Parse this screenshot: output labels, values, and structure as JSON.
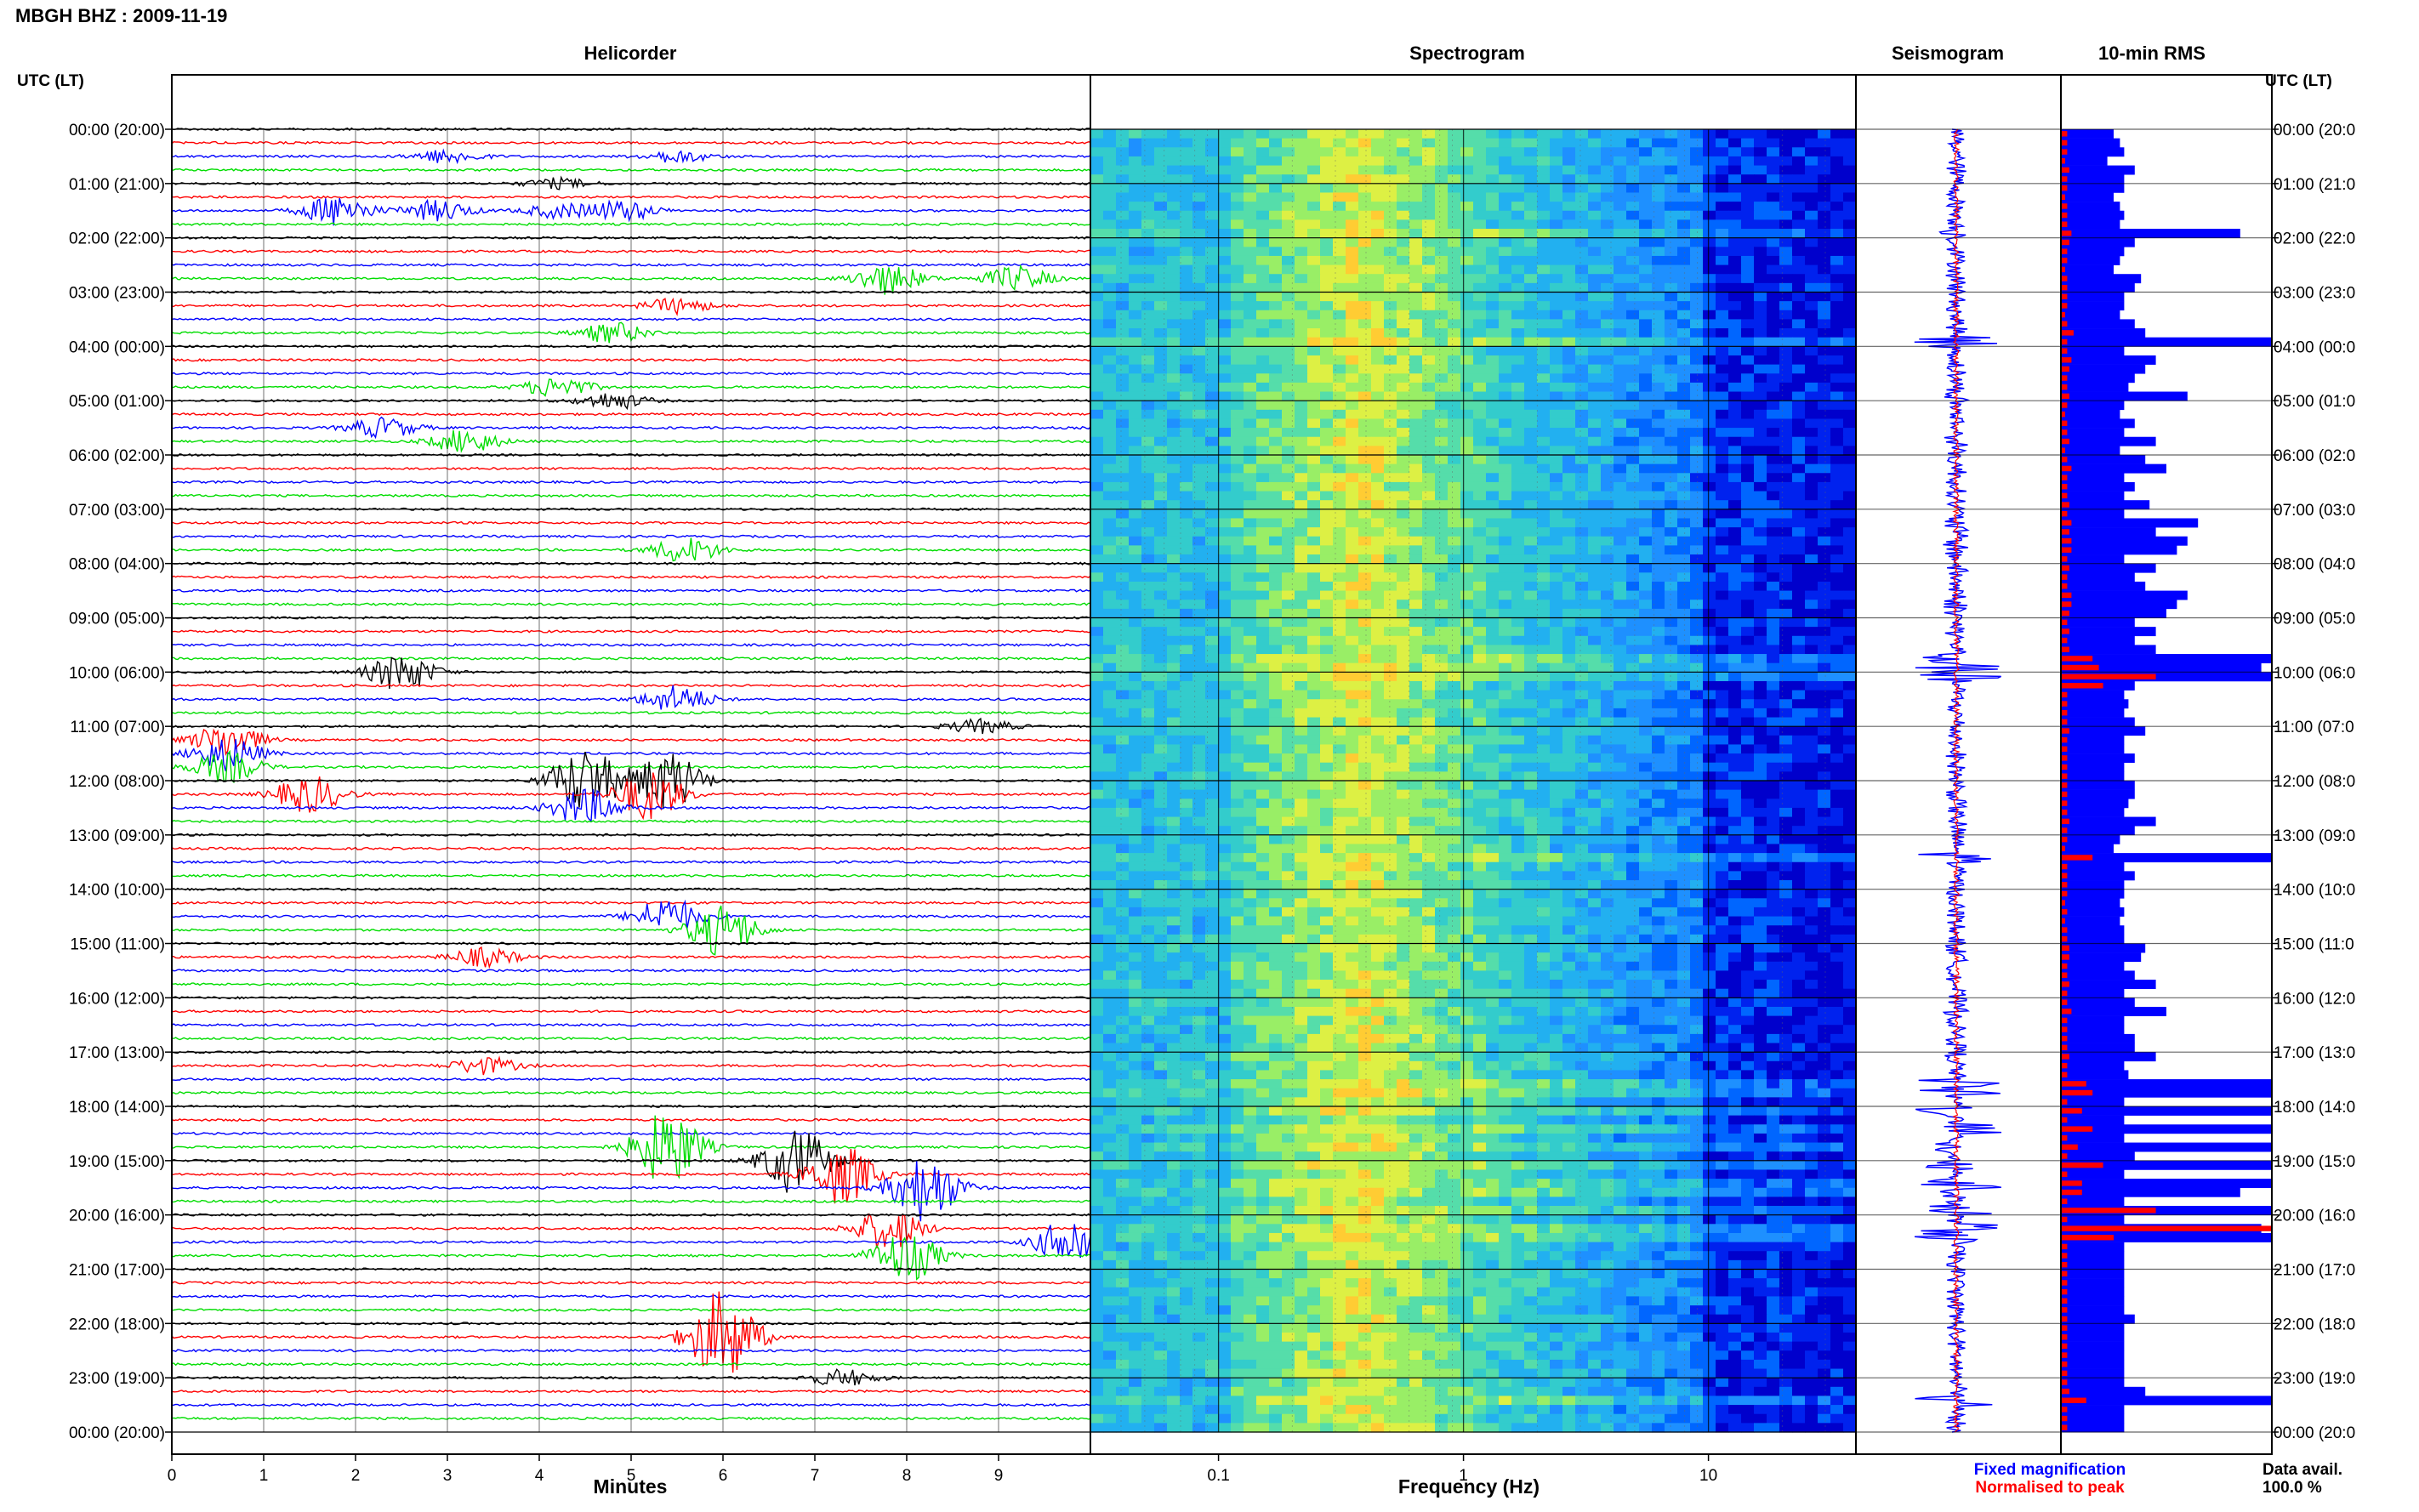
{
  "header": {
    "station_date": "MBGH BHZ : 2009-11-19"
  },
  "panels": {
    "helicorder": "Helicorder",
    "spectrogram": "Spectrogram",
    "seismogram": "Seismogram",
    "rms": "10-min RMS"
  },
  "axes": {
    "left_label": "UTC (LT)",
    "right_label": "UTC (LT)",
    "minutes_label": "Minutes",
    "frequency_label": "Frequency (Hz)"
  },
  "legend": {
    "fixed": "Fixed magnification",
    "normalised": "Normalised to peak",
    "fixed_color": "#0000ff",
    "normalised_color": "#ff0000"
  },
  "footer": {
    "availability_label": "Data avail.",
    "availability_value": "100.0 %"
  },
  "chart_data": {
    "type": "heatmap",
    "time_labels_left": [
      "00:00 (20:00)",
      "01:00 (21:00)",
      "02:00 (22:00)",
      "03:00 (23:00)",
      "04:00 (00:00)",
      "05:00 (01:00)",
      "06:00 (02:00)",
      "07:00 (03:00)",
      "08:00 (04:00)",
      "09:00 (05:00)",
      "10:00 (06:00)",
      "11:00 (07:00)",
      "12:00 (08:00)",
      "13:00 (09:00)",
      "14:00 (10:00)",
      "15:00 (11:00)",
      "16:00 (12:00)",
      "17:00 (13:00)",
      "18:00 (14:00)",
      "19:00 (15:00)",
      "20:00 (16:00)",
      "21:00 (17:00)",
      "22:00 (18:00)",
      "23:00 (19:00)",
      "00:00 (20:00)"
    ],
    "time_labels_right": [
      "00:00 (20:0",
      "01:00 (21:0",
      "02:00 (22:0",
      "03:00 (23:0",
      "04:00 (00:0",
      "05:00 (01:0",
      "06:00 (02:0",
      "07:00 (03:0",
      "08:00 (04:0",
      "09:00 (05:0",
      "10:00 (06:0",
      "11:00 (07:0",
      "12:00 (08:0",
      "13:00 (09:0",
      "14:00 (10:0",
      "15:00 (11:0",
      "16:00 (12:0",
      "17:00 (13:0",
      "18:00 (14:0",
      "19:00 (15:0",
      "20:00 (16:0",
      "21:00 (17:0",
      "22:00 (18:0",
      "23:00 (19:0",
      "00:00 (20:0"
    ],
    "minutes_ticks": [
      "0",
      "1",
      "2",
      "3",
      "4",
      "5",
      "6",
      "7",
      "8",
      "9"
    ],
    "frequency_ticks": [
      "0.1",
      "1",
      "10"
    ],
    "frequency_range_hz": [
      0.03,
      40
    ],
    "trace_colors": [
      "#000000",
      "#ff0000",
      "#0000ff",
      "#00dd00"
    ],
    "helicorder_events": [
      {
        "row": 2,
        "min": 3.0,
        "amp": 8
      },
      {
        "row": 2,
        "min": 5.5,
        "amp": 7
      },
      {
        "row": 4,
        "min": 4.2,
        "amp": 6
      },
      {
        "row": 6,
        "min": 1.8,
        "amp": 18
      },
      {
        "row": 6,
        "min": 2.9,
        "amp": 12
      },
      {
        "row": 6,
        "min": 4.2,
        "amp": 8
      },
      {
        "row": 6,
        "min": 4.9,
        "amp": 12
      },
      {
        "row": 11,
        "min": 7.8,
        "amp": 18
      },
      {
        "row": 11,
        "min": 9.2,
        "amp": 14
      },
      {
        "row": 13,
        "min": 5.5,
        "amp": 9
      },
      {
        "row": 15,
        "min": 4.8,
        "amp": 12
      },
      {
        "row": 19,
        "min": 4.2,
        "amp": 12
      },
      {
        "row": 20,
        "min": 4.8,
        "amp": 10
      },
      {
        "row": 22,
        "min": 2.3,
        "amp": 12
      },
      {
        "row": 23,
        "min": 3.2,
        "amp": 14
      },
      {
        "row": 31,
        "min": 5.6,
        "amp": 15
      },
      {
        "row": 40,
        "min": 2.5,
        "amp": 22
      },
      {
        "row": 42,
        "min": 5.5,
        "amp": 16
      },
      {
        "row": 44,
        "min": 8.8,
        "amp": 8
      },
      {
        "row": 45,
        "min": 0.6,
        "amp": 20
      },
      {
        "row": 46,
        "min": 0.6,
        "amp": 20
      },
      {
        "row": 47,
        "min": 0.6,
        "amp": 18
      },
      {
        "row": 48,
        "min": 4.5,
        "amp": 40
      },
      {
        "row": 48,
        "min": 5.4,
        "amp": 35
      },
      {
        "row": 49,
        "min": 1.5,
        "amp": 22
      },
      {
        "row": 49,
        "min": 5.2,
        "amp": 30
      },
      {
        "row": 50,
        "min": 4.5,
        "amp": 22
      },
      {
        "row": 58,
        "min": 5.4,
        "amp": 22
      },
      {
        "row": 59,
        "min": 6.0,
        "amp": 30
      },
      {
        "row": 61,
        "min": 3.4,
        "amp": 11
      },
      {
        "row": 69,
        "min": 3.4,
        "amp": 10
      },
      {
        "row": 75,
        "min": 5.4,
        "amp": 45
      },
      {
        "row": 76,
        "min": 6.8,
        "amp": 40
      },
      {
        "row": 77,
        "min": 7.3,
        "amp": 35
      },
      {
        "row": 78,
        "min": 8.2,
        "amp": 40
      },
      {
        "row": 81,
        "min": 7.8,
        "amp": 25
      },
      {
        "row": 82,
        "min": 9.8,
        "amp": 30
      },
      {
        "row": 83,
        "min": 8.0,
        "amp": 30
      },
      {
        "row": 89,
        "min": 6.0,
        "amp": 55
      },
      {
        "row": 92,
        "min": 7.3,
        "amp": 10
      }
    ],
    "rms_bars_blue": [
      0.25,
      0.28,
      0.3,
      0.22,
      0.35,
      0.3,
      0.3,
      0.25,
      0.28,
      0.3,
      0.28,
      0.85,
      0.35,
      0.3,
      0.28,
      0.25,
      0.38,
      0.35,
      0.3,
      0.3,
      0.28,
      0.35,
      0.4,
      1.0,
      0.3,
      0.45,
      0.4,
      0.35,
      0.32,
      0.6,
      0.3,
      0.28,
      0.35,
      0.3,
      0.45,
      0.28,
      0.4,
      0.5,
      0.3,
      0.35,
      0.3,
      0.42,
      0.3,
      0.65,
      0.45,
      0.6,
      0.55,
      0.3,
      0.45,
      0.35,
      0.4,
      0.6,
      0.55,
      0.5,
      0.35,
      0.45,
      0.35,
      0.45,
      1.0,
      0.95,
      1.0,
      0.35,
      0.3,
      0.32,
      0.3,
      0.35,
      0.4,
      0.3,
      0.3,
      0.35,
      0.3,
      0.3,
      0.35,
      0.35,
      0.32,
      0.3,
      0.45,
      0.35,
      0.28,
      0.25,
      1.0,
      0.3,
      0.35,
      0.3,
      0.3,
      0.28,
      0.3,
      0.28,
      0.3,
      0.3,
      0.4,
      0.38,
      0.3,
      0.35,
      0.45,
      0.3,
      0.35,
      0.5,
      0.3,
      0.3,
      0.35,
      0.35,
      0.45,
      0.3,
      0.32,
      1.0,
      1.0,
      0.3,
      1.0,
      0.3,
      1.0,
      0.3,
      1.0,
      0.35,
      1.0,
      0.3,
      1.0,
      0.85,
      0.3,
      1.0,
      0.3,
      0.95,
      1.0,
      0.3,
      0.3,
      0.3,
      0.3,
      0.3,
      0.3,
      0.3,
      0.3,
      0.35,
      0.3,
      0.3,
      0.3,
      0.3,
      0.3,
      0.3,
      0.3,
      0.4,
      1.0,
      0.3,
      0.3,
      0.3
    ],
    "rms_bars_red": [
      0.03,
      0.03,
      0.03,
      0.02,
      0.04,
      0.03,
      0.03,
      0.02,
      0.03,
      0.03,
      0.03,
      0.05,
      0.04,
      0.03,
      0.03,
      0.02,
      0.03,
      0.03,
      0.03,
      0.03,
      0.02,
      0.03,
      0.06,
      0.03,
      0.03,
      0.05,
      0.04,
      0.03,
      0.03,
      0.04,
      0.03,
      0.02,
      0.03,
      0.03,
      0.04,
      0.02,
      0.03,
      0.05,
      0.03,
      0.03,
      0.03,
      0.04,
      0.03,
      0.05,
      0.04,
      0.05,
      0.05,
      0.03,
      0.04,
      0.03,
      0.03,
      0.05,
      0.05,
      0.04,
      0.03,
      0.04,
      0.03,
      0.04,
      0.15,
      0.18,
      0.45,
      0.2,
      0.03,
      0.03,
      0.03,
      0.03,
      0.04,
      0.03,
      0.03,
      0.03,
      0.03,
      0.03,
      0.03,
      0.03,
      0.03,
      0.03,
      0.04,
      0.03,
      0.03,
      0.02,
      0.15,
      0.03,
      0.03,
      0.03,
      0.03,
      0.02,
      0.03,
      0.02,
      0.03,
      0.03,
      0.04,
      0.04,
      0.03,
      0.03,
      0.04,
      0.03,
      0.03,
      0.05,
      0.03,
      0.03,
      0.03,
      0.03,
      0.04,
      0.03,
      0.03,
      0.12,
      0.15,
      0.03,
      0.1,
      0.03,
      0.15,
      0.03,
      0.08,
      0.03,
      0.2,
      0.03,
      0.1,
      0.1,
      0.03,
      0.45,
      0.03,
      1.0,
      0.25,
      0.03,
      0.03,
      0.03,
      0.03,
      0.03,
      0.03,
      0.03,
      0.03,
      0.03,
      0.03,
      0.03,
      0.03,
      0.03,
      0.03,
      0.03,
      0.03,
      0.04,
      0.12,
      0.03,
      0.03,
      0.03
    ]
  }
}
